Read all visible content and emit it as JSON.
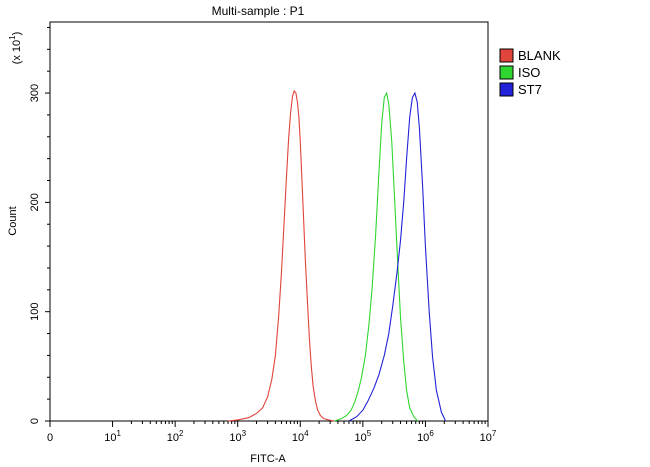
{
  "chart_data": {
    "type": "line",
    "title": "Multi-sample : P1",
    "xlabel": "FITC-A",
    "ylabel": "Count",
    "y_multiplier": "(x 10",
    "y_multiplier_exp": "1",
    "y_multiplier_close": ")",
    "xscale": "log",
    "xlim": [
      1,
      10000000
    ],
    "ylim": [
      0,
      365
    ],
    "grid": false,
    "legend_position": "top-right",
    "x_ticks": [
      {
        "value": 1,
        "label": "0",
        "exp": ""
      },
      {
        "value": 10,
        "label": "10",
        "exp": "1"
      },
      {
        "value": 100,
        "label": "10",
        "exp": "2"
      },
      {
        "value": 1000,
        "label": "10",
        "exp": "3"
      },
      {
        "value": 10000,
        "label": "10",
        "exp": "4"
      },
      {
        "value": 100000,
        "label": "10",
        "exp": "5"
      },
      {
        "value": 1000000,
        "label": "10",
        "exp": "6"
      },
      {
        "value": 10000000,
        "label": "10",
        "exp": "7"
      }
    ],
    "y_ticks": [
      {
        "value": 0,
        "label": "0"
      },
      {
        "value": 100,
        "label": "100"
      },
      {
        "value": 200,
        "label": "200"
      },
      {
        "value": 300,
        "label": "300"
      }
    ],
    "series": [
      {
        "name": "BLANK",
        "color": "#e0443a",
        "x": [
          700,
          1000,
          1500,
          2000,
          2500,
          3000,
          3500,
          4000,
          4500,
          5000,
          5500,
          6000,
          6500,
          7000,
          7500,
          8000,
          8500,
          9000,
          9500,
          10000,
          11000,
          12000,
          13000,
          14000,
          15000,
          16000,
          17500,
          19000,
          21000,
          24000,
          28000,
          35000
        ],
        "y": [
          0,
          1,
          3,
          7,
          12,
          22,
          38,
          60,
          95,
          135,
          180,
          222,
          258,
          282,
          297,
          302,
          300,
          292,
          278,
          255,
          200,
          150,
          110,
          75,
          50,
          32,
          18,
          10,
          5,
          2,
          1,
          0
        ]
      },
      {
        "name": "ISO",
        "color": "#2fd62f",
        "x": [
          35000,
          45000,
          55000,
          65000,
          75000,
          85000,
          95000,
          110000,
          125000,
          140000,
          160000,
          180000,
          200000,
          220000,
          240000,
          260000,
          290000,
          320000,
          360000,
          400000,
          450000,
          500000,
          560000,
          650000,
          750000
        ],
        "y": [
          0,
          2,
          5,
          10,
          18,
          28,
          40,
          60,
          88,
          120,
          170,
          225,
          272,
          296,
          300,
          290,
          255,
          205,
          145,
          95,
          55,
          28,
          12,
          4,
          0
        ]
      },
      {
        "name": "ST7",
        "color": "#2222d8",
        "x": [
          60000,
          80000,
          100000,
          120000,
          150000,
          180000,
          220000,
          260000,
          300000,
          350000,
          400000,
          450000,
          500000,
          560000,
          620000,
          680000,
          740000,
          800000,
          900000,
          1000000,
          1150000,
          1300000,
          1500000,
          1800000,
          2100000
        ],
        "y": [
          0,
          4,
          10,
          18,
          30,
          42,
          60,
          80,
          105,
          135,
          165,
          200,
          240,
          278,
          296,
          300,
          292,
          268,
          215,
          160,
          100,
          58,
          28,
          8,
          0
        ]
      }
    ]
  }
}
